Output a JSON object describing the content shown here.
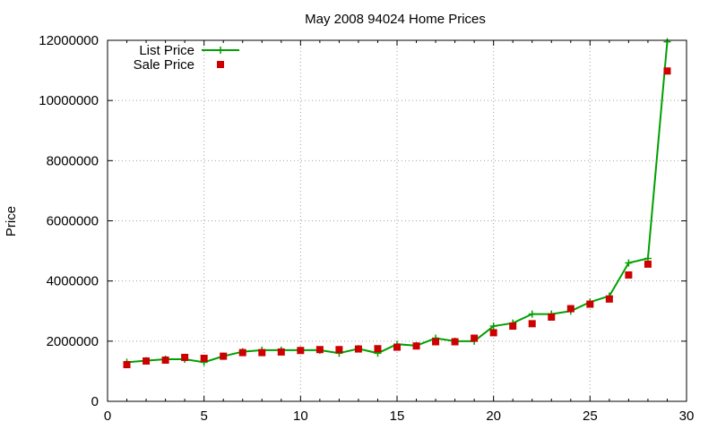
{
  "chart_data": {
    "type": "line",
    "title": "May 2008 94024 Home Prices",
    "xlabel": "",
    "ylabel": "Price",
    "xlim": [
      0,
      30
    ],
    "ylim": [
      0,
      12000000
    ],
    "x_ticks": [
      0,
      5,
      10,
      15,
      20,
      25,
      30
    ],
    "y_ticks": [
      0,
      2000000,
      4000000,
      6000000,
      8000000,
      10000000,
      12000000
    ],
    "grid": true,
    "legend_position": "top-left",
    "series": [
      {
        "name": "List Price",
        "style": "line-points",
        "color": "#00a000",
        "x": [
          1,
          2,
          3,
          4,
          5,
          6,
          7,
          8,
          9,
          10,
          11,
          12,
          13,
          14,
          15,
          16,
          17,
          18,
          19,
          20,
          21,
          22,
          23,
          24,
          25,
          26,
          27,
          28,
          29
        ],
        "values": [
          1300000,
          1350000,
          1400000,
          1400000,
          1300000,
          1500000,
          1650000,
          1700000,
          1700000,
          1700000,
          1700000,
          1600000,
          1750000,
          1600000,
          1900000,
          1850000,
          2100000,
          2000000,
          2000000,
          2500000,
          2600000,
          2900000,
          2900000,
          3000000,
          3300000,
          3500000,
          4600000,
          4750000,
          11950000
        ]
      },
      {
        "name": "Sale Price",
        "style": "points",
        "color": "#cc0000",
        "x": [
          1,
          2,
          3,
          4,
          5,
          6,
          7,
          8,
          9,
          10,
          11,
          12,
          13,
          14,
          15,
          16,
          17,
          18,
          19,
          20,
          21,
          22,
          23,
          24,
          25,
          26,
          27,
          28,
          29
        ],
        "values": [
          1220000,
          1340000,
          1370000,
          1460000,
          1430000,
          1500000,
          1620000,
          1620000,
          1640000,
          1690000,
          1720000,
          1720000,
          1740000,
          1750000,
          1800000,
          1840000,
          1980000,
          1980000,
          2100000,
          2280000,
          2500000,
          2580000,
          2800000,
          3080000,
          3230000,
          3400000,
          4200000,
          4560000,
          10980000
        ]
      }
    ]
  }
}
